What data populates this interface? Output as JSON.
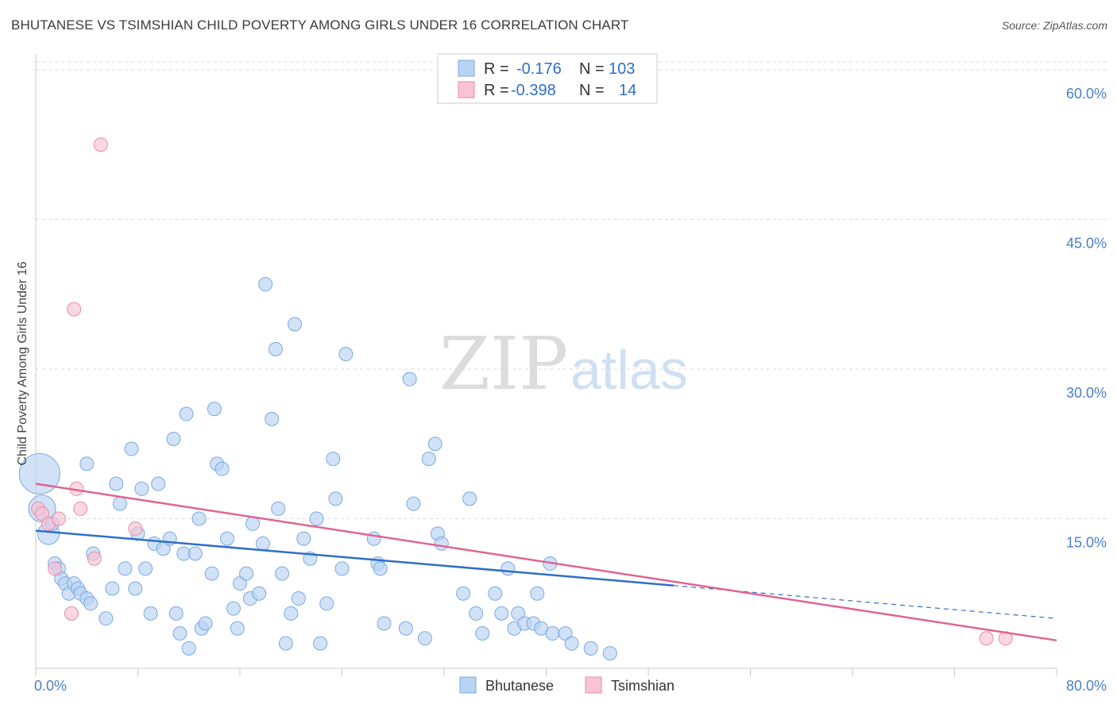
{
  "header": {
    "title": "BHUTANESE VS TSIMSHIAN CHILD POVERTY AMONG GIRLS UNDER 16 CORRELATION CHART",
    "source": "Source: ZipAtlas.com"
  },
  "watermark": {
    "zip": "ZIP",
    "atlas": "atlas"
  },
  "legend_top": [
    {
      "r_label": "R =",
      "r_value": "-0.176",
      "n_label": "N =",
      "n_value": "103"
    },
    {
      "r_label": "R =",
      "r_value": "-0.398",
      "n_label": "N =",
      "n_value": "14"
    }
  ],
  "legend_bottom": [
    "Bhutanese",
    "Tsimshian"
  ],
  "colors": {
    "bhutanese_fill": "#b8d3f3",
    "bhutanese_stroke": "#7aa8e0",
    "bhutanese_line": "#2f6fc7",
    "tsimshian_fill": "#f8c3d4",
    "tsimshian_stroke": "#e88aa8",
    "tsimshian_line": "#e06492"
  },
  "chart_data": {
    "type": "scatter",
    "title": "BHUTANESE VS TSIMSHIAN CHILD POVERTY AMONG GIRLS UNDER 16 CORRELATION CHART",
    "xlabel": "",
    "ylabel": "Child Poverty Among Girls Under 16",
    "xlim": [
      0,
      80
    ],
    "ylim": [
      0,
      60
    ],
    "x_tick_labels": [
      "0.0%",
      "80.0%"
    ],
    "y_ticks": [
      15,
      30,
      45,
      60
    ],
    "y_tick_labels": [
      "15.0%",
      "30.0%",
      "45.0%",
      "60.0%"
    ],
    "grid": true,
    "series": [
      {
        "name": "Bhutanese",
        "points": [
          [
            0.3,
            19.5,
            3
          ],
          [
            0.5,
            16,
            2
          ],
          [
            1,
            13.5,
            1.6
          ],
          [
            1.3,
            14.5,
            1
          ],
          [
            1.5,
            10.5,
            1
          ],
          [
            1.8,
            10,
            1
          ],
          [
            2,
            9,
            1
          ],
          [
            2.3,
            8.5,
            1
          ],
          [
            2.6,
            7.5,
            1
          ],
          [
            3,
            8.5,
            1
          ],
          [
            3.3,
            8,
            1
          ],
          [
            3.5,
            7.5,
            1
          ],
          [
            4,
            7,
            1
          ],
          [
            4.3,
            6.5,
            1
          ],
          [
            4.5,
            11.5,
            1
          ],
          [
            4,
            20.5,
            1
          ],
          [
            5.5,
            5,
            1
          ],
          [
            6,
            8,
            1
          ],
          [
            6.3,
            18.5,
            1
          ],
          [
            6.6,
            16.5,
            1
          ],
          [
            7,
            10,
            1
          ],
          [
            7.5,
            22,
            1
          ],
          [
            7.8,
            8,
            1
          ],
          [
            8,
            13.5,
            1
          ],
          [
            8.3,
            18,
            1
          ],
          [
            8.6,
            10,
            1
          ],
          [
            9,
            5.5,
            1
          ],
          [
            9.3,
            12.5,
            1
          ],
          [
            9.6,
            18.5,
            1
          ],
          [
            10,
            12,
            1
          ],
          [
            10.5,
            13,
            1
          ],
          [
            10.8,
            23,
            1
          ],
          [
            11,
            5.5,
            1
          ],
          [
            11.3,
            3.5,
            1
          ],
          [
            11.6,
            11.5,
            1
          ],
          [
            11.8,
            25.5,
            1
          ],
          [
            12,
            2,
            1
          ],
          [
            12.5,
            11.5,
            1
          ],
          [
            12.8,
            15,
            1
          ],
          [
            13,
            4,
            1
          ],
          [
            13.3,
            4.5,
            1
          ],
          [
            13.8,
            9.5,
            1
          ],
          [
            14,
            26,
            1
          ],
          [
            14.2,
            20.5,
            1
          ],
          [
            14.6,
            20,
            1
          ],
          [
            15,
            13,
            1
          ],
          [
            15.5,
            6,
            1
          ],
          [
            15.8,
            4,
            1
          ],
          [
            16,
            8.5,
            1
          ],
          [
            16.5,
            9.5,
            1
          ],
          [
            16.8,
            7,
            1
          ],
          [
            17,
            14.5,
            1
          ],
          [
            17.5,
            7.5,
            1
          ],
          [
            17.8,
            12.5,
            1
          ],
          [
            18,
            38.5,
            1
          ],
          [
            18.5,
            25,
            1
          ],
          [
            18.8,
            32,
            1
          ],
          [
            19,
            16,
            1
          ],
          [
            19.3,
            9.5,
            1
          ],
          [
            19.6,
            2.5,
            1
          ],
          [
            20,
            5.5,
            1
          ],
          [
            20.3,
            34.5,
            1
          ],
          [
            20.6,
            7,
            1
          ],
          [
            21,
            13,
            1
          ],
          [
            21.5,
            11,
            1
          ],
          [
            22,
            15,
            1
          ],
          [
            22.3,
            2.5,
            1
          ],
          [
            22.8,
            6.5,
            1
          ],
          [
            23.3,
            21,
            1
          ],
          [
            23.5,
            17,
            1
          ],
          [
            24,
            10,
            1
          ],
          [
            24.3,
            31.5,
            1
          ],
          [
            26.5,
            13,
            1
          ],
          [
            26.8,
            10.5,
            1
          ],
          [
            27,
            10,
            1
          ],
          [
            27.3,
            4.5,
            1
          ],
          [
            29,
            4,
            1
          ],
          [
            29.3,
            29,
            1
          ],
          [
            29.6,
            16.5,
            1
          ],
          [
            30.5,
            3,
            1
          ],
          [
            30.8,
            21,
            1
          ],
          [
            31.3,
            22.5,
            1
          ],
          [
            31.5,
            13.5,
            1
          ],
          [
            31.8,
            12.5,
            1
          ],
          [
            33.5,
            7.5,
            1
          ],
          [
            34,
            17,
            1
          ],
          [
            34.5,
            5.5,
            1
          ],
          [
            35,
            3.5,
            1
          ],
          [
            36,
            7.5,
            1
          ],
          [
            36.5,
            5.5,
            1
          ],
          [
            37,
            10,
            1
          ],
          [
            37.5,
            4,
            1
          ],
          [
            37.8,
            5.5,
            1
          ],
          [
            38.3,
            4.5,
            1
          ],
          [
            39,
            4.5,
            1
          ],
          [
            39.3,
            7.5,
            1
          ],
          [
            39.6,
            4,
            1
          ],
          [
            40.3,
            10.5,
            1
          ],
          [
            40.5,
            3.5,
            1
          ],
          [
            41.5,
            3.5,
            1
          ],
          [
            42,
            2.5,
            1
          ],
          [
            43.5,
            2,
            1
          ],
          [
            45,
            1.5,
            1
          ]
        ],
        "trend": {
          "x0": 0,
          "y0": 13.8,
          "x1": 50,
          "y1": 8.3
        },
        "trend_ext": {
          "x0": 50,
          "y0": 8.3,
          "x1": 80,
          "y1": 5
        }
      },
      {
        "name": "Tsimshian",
        "points": [
          [
            0.2,
            16,
            1
          ],
          [
            0.5,
            15.5,
            1
          ],
          [
            1,
            14.5,
            1
          ],
          [
            1.5,
            10,
            1
          ],
          [
            1.8,
            15,
            1
          ],
          [
            2.8,
            5.5,
            1
          ],
          [
            3,
            36,
            1
          ],
          [
            3.2,
            18,
            1
          ],
          [
            3.5,
            16,
            1
          ],
          [
            4.6,
            11,
            1
          ],
          [
            5.1,
            52.5,
            1
          ],
          [
            7.8,
            14,
            1
          ],
          [
            74.5,
            3,
            1
          ],
          [
            76,
            3,
            1
          ]
        ],
        "trend": {
          "x0": 0,
          "y0": 18.5,
          "x1": 80,
          "y1": 2.8
        }
      }
    ]
  }
}
